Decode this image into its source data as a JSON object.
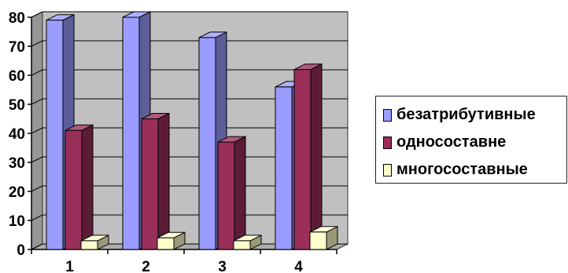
{
  "chart_data": {
    "type": "bar",
    "style": "3d-clustered-column",
    "categories": [
      "1",
      "2",
      "3",
      "4"
    ],
    "series": [
      {
        "name": "безатрибутивные",
        "values": [
          79,
          80,
          73,
          56
        ],
        "color": "#9a9cff"
      },
      {
        "name": "односоставне",
        "values": [
          41,
          45,
          37,
          62
        ],
        "color": "#9a2f5a"
      },
      {
        "name": "многосоставные",
        "values": [
          3,
          4,
          3,
          6
        ],
        "color": "#ffffcc"
      }
    ],
    "y_ticks": [
      "0",
      "10",
      "20",
      "30",
      "40",
      "50",
      "60",
      "70",
      "80"
    ],
    "ylim": [
      0,
      80
    ],
    "grid": true,
    "legend_position": "right",
    "background": "#c0c0c0"
  }
}
